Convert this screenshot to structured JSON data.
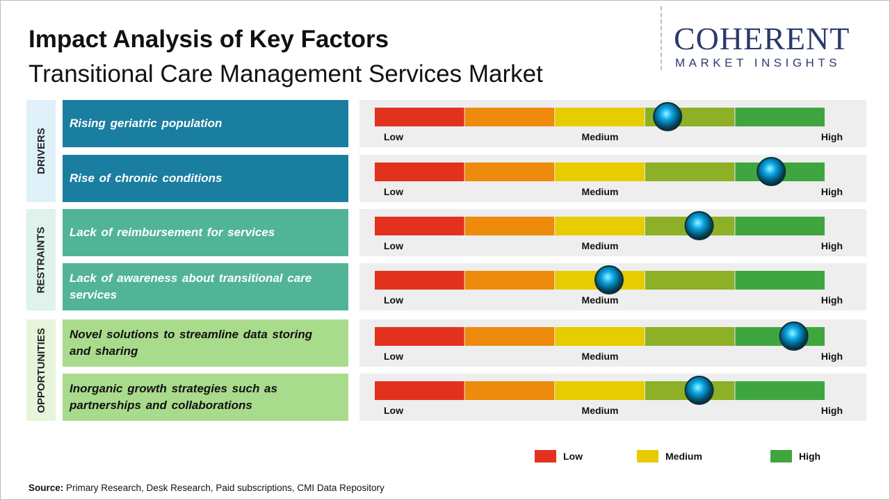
{
  "header": {
    "title": "Impact Analysis of Key Factors",
    "subtitle": "Transitional Care Management Services Market"
  },
  "logo": {
    "name": "COHERENT",
    "tagline": "MARKET INSIGHTS"
  },
  "scale": {
    "xlim": [
      0,
      100
    ],
    "colors": [
      "#e2321e",
      "#ee8a0c",
      "#e6cc00",
      "#8db026",
      "#3fa63f"
    ],
    "labels": [
      "Low",
      "Medium",
      "High"
    ]
  },
  "groups": [
    {
      "name": "DRIVERS",
      "color": "#1a7ea0",
      "text_color": "#ffffff",
      "band_color": "#dff0f8",
      "factors": [
        {
          "label": "Rising geriatric population",
          "impact": 65
        },
        {
          "label": "Rise of chronic conditions",
          "impact": 88
        }
      ]
    },
    {
      "name": "RESTRAINTS",
      "color": "#52b496",
      "text_color": "#ffffff",
      "band_color": "#dff2ec",
      "factors": [
        {
          "label": "Lack of reimbursement for services",
          "impact": 72
        },
        {
          "label": "Lack of awareness about transitional care services",
          "impact": 52
        }
      ]
    },
    {
      "name": "OPPORTUNITIES",
      "color": "#a9db8c",
      "text_color": "#111111",
      "band_color": "#e6f5dc",
      "factors": [
        {
          "label": "Novel solutions to streamline data storing and sharing",
          "impact": 93
        },
        {
          "label": "Inorganic growth strategies such as partnerships and collaborations",
          "impact": 72
        }
      ]
    }
  ],
  "legend": [
    {
      "label": "Low",
      "color": "#e2321e"
    },
    {
      "label": "Medium",
      "color": "#e6cc00"
    },
    {
      "label": "High",
      "color": "#3fa63f"
    }
  ],
  "source": {
    "label": "Source:",
    "text": "Primary Research, Desk Research, Paid subscriptions, CMI Data Repository"
  }
}
